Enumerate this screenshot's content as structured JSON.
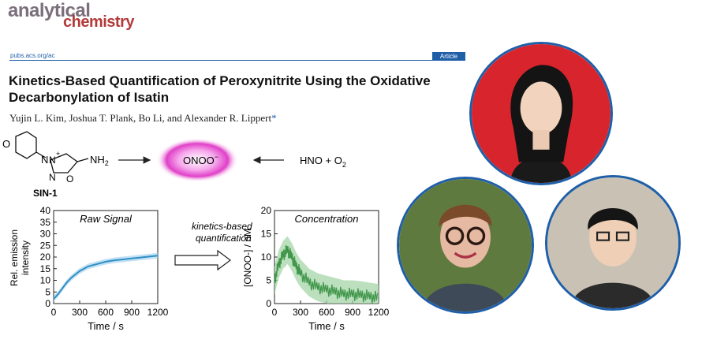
{
  "journal": {
    "word1": "analytical",
    "word2": "chemistry",
    "url": "pubs.acs.org/ac",
    "article_label": "Article"
  },
  "paper": {
    "title_line1": "Kinetics-Based Quantification of Peroxynitrite Using the Oxidative",
    "title_line2": "Decarbonylation of Isatin",
    "authors": "Yujin L. Kim, Joshua T. Plank, Bo Li, and Alexander R. Lippert",
    "corresponding_mark": "*"
  },
  "scheme": {
    "compound_label": "SIN-1",
    "nh2": "NH",
    "nh2_sub": "2",
    "center": "ONOO",
    "center_sup": "−",
    "right": "HNO + O",
    "right_sub": "2",
    "n_plus": "+",
    "atoms": {
      "n1": "N",
      "n2": "N",
      "n3": "N",
      "o1": "O",
      "o2": "O"
    }
  },
  "arrow_label": {
    "line1": "kinetics-based",
    "line2": "quantification"
  },
  "colors": {
    "accent": "#1f5fa8",
    "signal_line": "#2f8fc7",
    "signal_band": "#a9d4ee",
    "conc_line": "#2e8b3a",
    "conc_band": "#9fd3a3",
    "glow": "#e040c8"
  },
  "chart_data": [
    {
      "type": "line",
      "title": "Raw Signal",
      "xlabel": "Time / s",
      "ylabel_line1": "Rel. emission",
      "ylabel_line2": "intensity",
      "xlim": [
        0,
        1200
      ],
      "ylim": [
        0,
        40
      ],
      "xticks": [
        0,
        300,
        600,
        900,
        1200
      ],
      "yticks": [
        0,
        5,
        10,
        15,
        20,
        25,
        30,
        35,
        40
      ],
      "x": [
        0,
        50,
        100,
        150,
        200,
        300,
        400,
        500,
        600,
        700,
        800,
        900,
        1000,
        1100,
        1200
      ],
      "y": [
        2,
        4,
        6.5,
        9,
        11,
        14,
        16,
        17,
        18,
        18.6,
        19,
        19.4,
        19.8,
        20.2,
        20.6
      ]
    },
    {
      "type": "line",
      "title": "Concentration",
      "xlabel": "Time / s",
      "ylabel": "[ONOO-] / nM",
      "xlim": [
        0,
        1200
      ],
      "ylim": [
        0,
        20
      ],
      "xticks": [
        0,
        300,
        600,
        900,
        1200
      ],
      "yticks": [
        0,
        5,
        10,
        15,
        20
      ],
      "x": [
        0,
        50,
        100,
        150,
        200,
        250,
        300,
        400,
        500,
        600,
        700,
        800,
        900,
        1000,
        1100,
        1200
      ],
      "y": [
        5,
        8.5,
        10.5,
        11.5,
        10,
        8,
        6.5,
        4.5,
        3.5,
        3,
        2.5,
        2,
        2,
        1.8,
        1.5,
        1.2
      ]
    }
  ]
}
